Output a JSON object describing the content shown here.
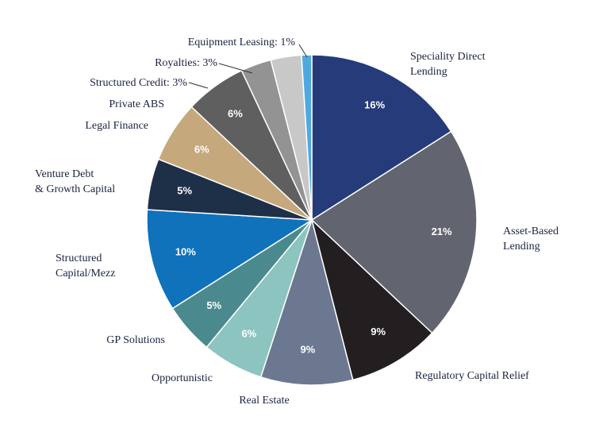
{
  "chart_data": {
    "type": "pie",
    "categories": [
      "Speciality Direct\nLending",
      "Asset-Based\nLending",
      "Regulatory Capital Relief",
      "Real Estate",
      "Opportunistic",
      "GP Solutions",
      "Structured\nCapital/Mezz",
      "Venture Debt\n& Growth Capital",
      "Legal Finance",
      "Private ABS",
      "Structured Credit: 3%",
      "Royalties: 3%",
      "Equipment Leasing: 1%"
    ],
    "values": [
      16,
      21,
      9,
      9,
      6,
      5,
      10,
      5,
      6,
      6,
      3,
      3,
      1
    ],
    "value_labels": [
      "16%",
      "21%",
      "9%",
      "9%",
      "6%",
      "5%",
      "10%",
      "5%",
      "6%",
      "6%",
      null,
      null,
      null
    ],
    "colors": [
      "#253b7a",
      "#62656f",
      "#231f20",
      "#6b7890",
      "#8cc4bf",
      "#4a8a8e",
      "#0f72bb",
      "#1e2f48",
      "#c5a97c",
      "#5f5f5f",
      "#939393",
      "#c8c8c8",
      "#4ea9e0"
    ]
  }
}
